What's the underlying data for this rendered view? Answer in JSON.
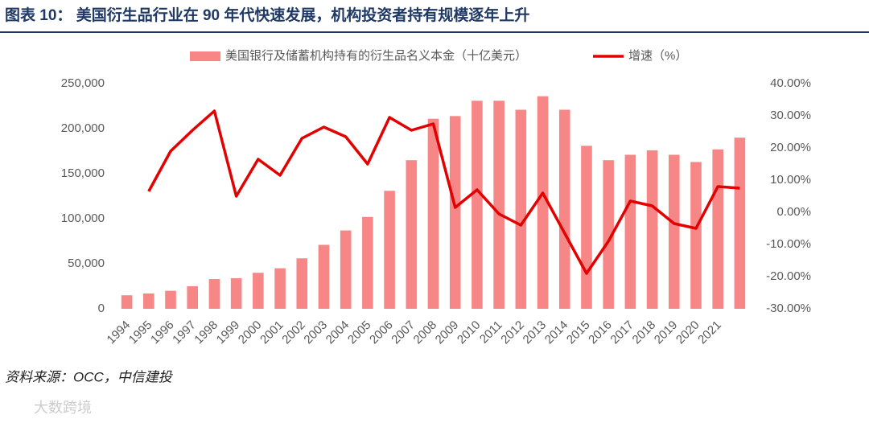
{
  "chart_data": {
    "type": "bar",
    "title": "图表 10：  美国衍生品行业在 90 年代快速发展，机构投资者持有规模逐年上升",
    "source": "资料来源：OCC，中信建投",
    "watermark": "大数跨境",
    "categories": [
      "1994",
      "1995",
      "1996",
      "1997",
      "1998",
      "1999",
      "2000",
      "2001",
      "2002",
      "2003",
      "2004",
      "2005",
      "2006",
      "2007",
      "2008",
      "2009",
      "2010",
      "2011",
      "2012",
      "2013",
      "2014",
      "2015",
      "2016",
      "2017",
      "2018",
      "2019",
      "2020",
      "2021",
      null
    ],
    "series": [
      {
        "name": "美国银行及储蓄机构持有的衍生品名义本金（十亿美元）",
        "type": "bar",
        "color": "#f78787",
        "values": [
          15000,
          17000,
          20000,
          25000,
          33000,
          34000,
          40000,
          45000,
          56000,
          71000,
          87000,
          102000,
          131000,
          165000,
          211000,
          214000,
          231000,
          231000,
          221000,
          236000,
          221000,
          181000,
          165000,
          171000,
          176000,
          171000,
          163000,
          177000,
          190000
        ]
      },
      {
        "name": "增速（%）",
        "type": "line",
        "axis": "y2",
        "color": "#e30000",
        "values": [
          null,
          6.5,
          19,
          25.5,
          31.5,
          5,
          16.5,
          11.5,
          23,
          26.5,
          23.5,
          15,
          29.5,
          25.5,
          27.5,
          1.5,
          7,
          -0.5,
          -4,
          6,
          -6.5,
          -19,
          -9,
          3.5,
          2,
          -3.5,
          -5,
          8,
          7.5
        ]
      }
    ],
    "ylim": [
      0,
      250000
    ],
    "yticks": [
      0,
      {
        "value": 50000,
        "label": "50,000"
      },
      {
        "value": 100000,
        "label": "100,000"
      },
      {
        "value": 150000,
        "label": "150,000"
      },
      {
        "value": 200000,
        "label": "200,000"
      },
      {
        "value": 250000,
        "label": "250,000"
      }
    ],
    "y2lim": [
      -30,
      40
    ],
    "y2ticks": [
      {
        "value": -30,
        "label": "-30.00%"
      },
      {
        "value": -20,
        "label": "-20.00%"
      },
      {
        "value": -10,
        "label": "-10.00%"
      },
      {
        "value": 0,
        "label": "0.00%"
      },
      {
        "value": 10,
        "label": "10.00%"
      },
      {
        "value": 20,
        "label": "20.00%"
      },
      {
        "value": 30,
        "label": "30.00%"
      },
      {
        "value": 40,
        "label": "40.00%"
      }
    ],
    "grid": false
  }
}
